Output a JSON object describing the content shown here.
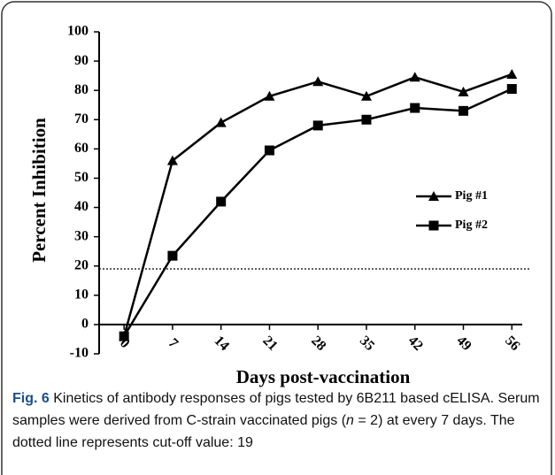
{
  "chart_data": {
    "type": "line",
    "ylabel": "Percent Inhibition",
    "xlabel": "Days post-vaccination",
    "x": [
      0,
      7,
      14,
      21,
      28,
      35,
      42,
      49,
      56
    ],
    "xlim": [
      -3.6,
      57.5
    ],
    "xticks": [
      0,
      7,
      14,
      21,
      28,
      35,
      42,
      49,
      56
    ],
    "ylim": [
      -10,
      100
    ],
    "yticks": [
      -10,
      0,
      10,
      20,
      30,
      40,
      50,
      60,
      70,
      80,
      90,
      100
    ],
    "series": [
      {
        "name": "Pig #1",
        "color": "#000000",
        "marker": "triangle",
        "values": [
          -4,
          56,
          69,
          78,
          83,
          78,
          84.5,
          79.5,
          85.5
        ]
      },
      {
        "name": "Pig #2",
        "color": "#000000",
        "marker": "square",
        "values": [
          -4,
          23.5,
          42,
          59.5,
          68,
          70,
          74,
          73,
          80.5
        ]
      }
    ],
    "reference_line": 19,
    "legend": "right"
  },
  "caption": {
    "label": "Fig. 6",
    "parts": [
      "Kinetics of antibody responses of pigs tested by 6B211 based cELISA. Serum samples were derived from C-strain vaccinated pigs (",
      "n",
      " = 2) at every 7 days. The dotted line represents cut-off value: 19"
    ]
  }
}
